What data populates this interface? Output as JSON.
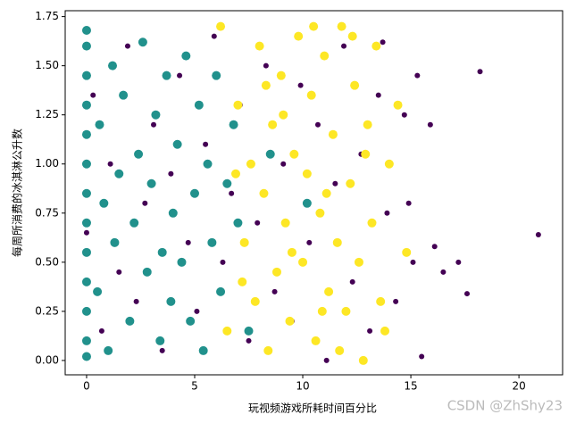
{
  "chart_data": {
    "type": "scatter",
    "xlabel": "玩视频游戏所耗时间百分比",
    "ylabel": "每周所消费的冰淇淋公升数",
    "watermark": "CSDN @ZhShy23",
    "xlim": [
      -0.99,
      22.02
    ],
    "ylim": [
      -0.073,
      1.78
    ],
    "xticks": [
      0,
      5,
      10,
      15,
      20
    ],
    "yticks": [
      {
        "value": 0,
        "label": "0.00"
      },
      {
        "value": 0.25,
        "label": "0.25"
      },
      {
        "value": 0.5,
        "label": "0.50"
      },
      {
        "value": 0.75,
        "label": "0.75"
      },
      {
        "value": 1,
        "label": "1.00"
      },
      {
        "value": 1.25,
        "label": "1.25"
      },
      {
        "value": 1.5,
        "label": "1.50"
      },
      {
        "value": 1.75,
        "label": "1.75"
      }
    ],
    "series": [
      {
        "color": "#440154",
        "x": [
          0,
          0.3,
          0.7,
          1.1,
          1.5,
          1.9,
          2.3,
          2.7,
          3.1,
          3.5,
          3.9,
          4.3,
          4.7,
          5.1,
          5.5,
          5.9,
          6.3,
          6.7,
          7.1,
          7.5,
          7.9,
          8.3,
          8.7,
          9.1,
          9.5,
          9.9,
          10.3,
          10.7,
          11.1,
          11.5,
          11.9,
          12.3,
          12.7,
          13.1,
          13.5,
          13.9,
          14.3,
          14.7,
          15.1,
          15.5,
          15.9,
          16.1,
          16.5,
          17.2,
          17.6,
          18.2,
          20.9,
          14.9,
          15.3,
          13.7
        ],
        "y": [
          0.65,
          1.35,
          0.15,
          1.0,
          0.45,
          1.6,
          0.3,
          0.8,
          1.2,
          0.05,
          0.95,
          1.45,
          0.6,
          0.25,
          1.1,
          1.65,
          0.5,
          0.85,
          1.3,
          0.1,
          0.7,
          1.5,
          0.35,
          1.0,
          0.2,
          1.4,
          0.6,
          1.2,
          0.0,
          0.9,
          1.6,
          0.4,
          1.05,
          0.15,
          1.35,
          0.75,
          0.3,
          1.25,
          0.5,
          0.02,
          1.2,
          0.58,
          0.45,
          0.5,
          0.34,
          1.47,
          0.64,
          0.8,
          1.45,
          1.62
        ]
      },
      {
        "color": "#21918c",
        "x": [
          0,
          0,
          0,
          0,
          0,
          0,
          0,
          0,
          0,
          0,
          0,
          0,
          0,
          0.5,
          0.6,
          0.8,
          1,
          1.2,
          1.3,
          1.5,
          1.7,
          2,
          2.2,
          2.4,
          2.6,
          2.8,
          3,
          3.2,
          3.4,
          3.5,
          3.7,
          3.9,
          4,
          4.2,
          4.4,
          4.6,
          4.8,
          5,
          5.2,
          5.4,
          5.6,
          5.8,
          6,
          6.2,
          6.5,
          6.8,
          7,
          7.5,
          8.5,
          10.2
        ],
        "y": [
          0.02,
          0.1,
          0.25,
          0.4,
          0.55,
          0.7,
          0.85,
          1.0,
          1.15,
          1.3,
          1.45,
          1.6,
          1.68,
          0.35,
          1.2,
          0.8,
          0.05,
          1.5,
          0.6,
          0.95,
          1.35,
          0.2,
          0.7,
          1.05,
          1.62,
          0.45,
          0.9,
          1.25,
          0.1,
          0.55,
          1.45,
          0.3,
          0.75,
          1.1,
          0.5,
          1.55,
          0.2,
          0.85,
          1.3,
          0.05,
          1.0,
          0.6,
          1.45,
          0.35,
          0.9,
          1.2,
          0.7,
          0.15,
          1.05,
          0.8
        ]
      },
      {
        "color": "#fde725",
        "x": [
          6.2,
          6.5,
          7,
          7.3,
          7.6,
          7.8,
          8,
          8.2,
          8.4,
          8.6,
          8.8,
          9,
          9.2,
          9.4,
          9.6,
          9.8,
          10,
          10.2,
          10.4,
          10.6,
          10.8,
          11,
          11.2,
          11.4,
          11.6,
          11.8,
          12,
          12.2,
          12.4,
          12.6,
          12.8,
          13,
          13.2,
          13.4,
          13.6,
          14,
          14.4,
          14.8,
          7.2,
          9.1,
          10.9,
          11.7,
          8.3,
          12.3,
          6.9,
          13.8,
          9.5,
          10.5,
          11.1,
          12.9
        ],
        "y": [
          1.7,
          0.15,
          1.3,
          0.6,
          1.0,
          0.3,
          1.6,
          0.85,
          0.05,
          1.2,
          0.45,
          1.45,
          0.7,
          0.2,
          1.05,
          1.65,
          0.5,
          0.95,
          1.35,
          0.1,
          0.75,
          1.55,
          0.35,
          1.15,
          0.6,
          1.7,
          0.25,
          0.9,
          1.4,
          0.5,
          0.0,
          1.2,
          0.7,
          1.6,
          0.3,
          1.0,
          1.3,
          0.55,
          0.4,
          1.25,
          0.25,
          0.05,
          1.4,
          1.65,
          0.95,
          0.15,
          0.55,
          1.7,
          0.85,
          1.05
        ]
      }
    ]
  }
}
